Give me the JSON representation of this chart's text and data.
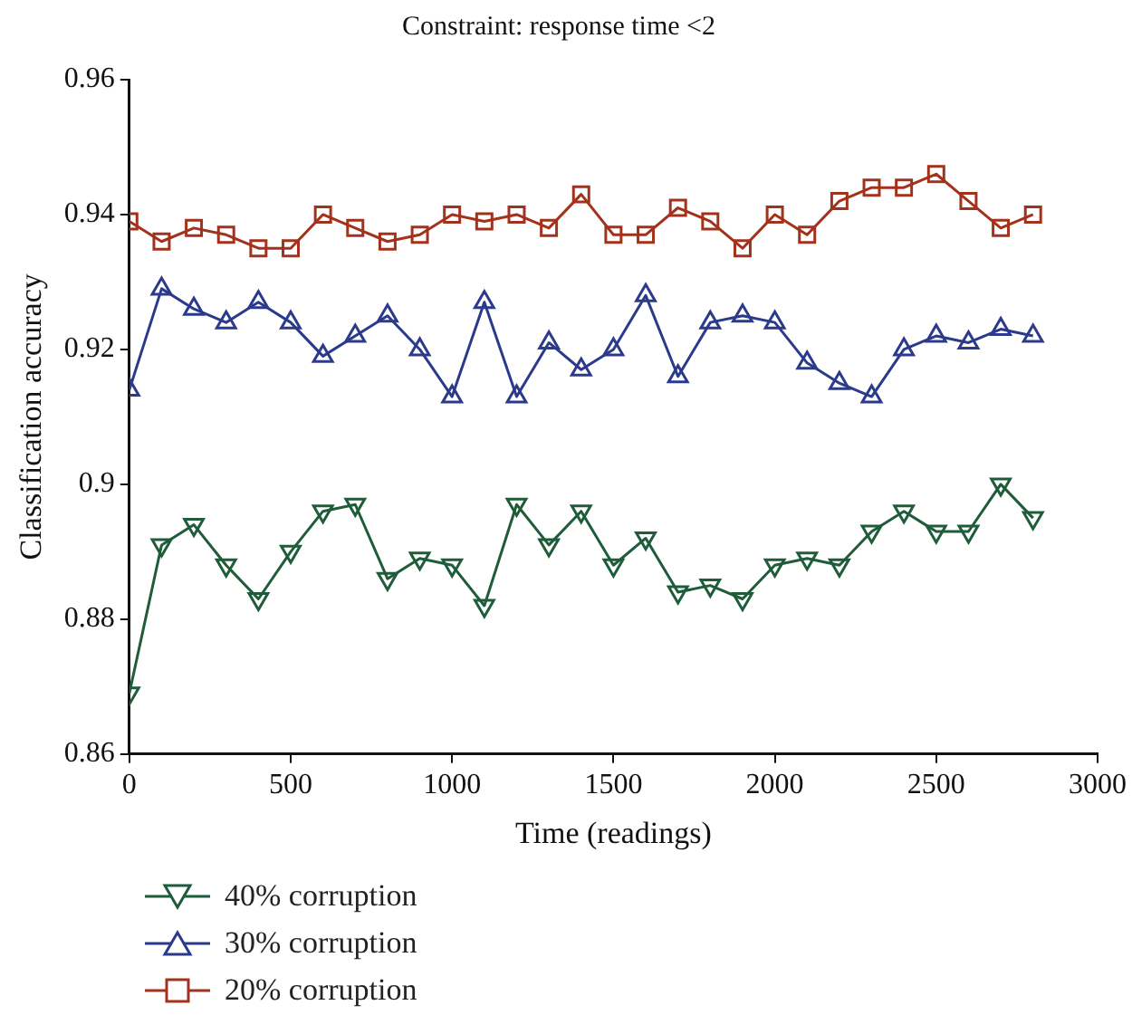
{
  "chart_data": {
    "type": "line",
    "title": "Constraint: response time <2",
    "xlabel": "Time (readings)",
    "ylabel": "Classification accuracy",
    "x": [
      0,
      100,
      200,
      300,
      400,
      500,
      600,
      700,
      800,
      900,
      1000,
      1100,
      1200,
      1300,
      1400,
      1500,
      1600,
      1700,
      1800,
      1900,
      2000,
      2100,
      2200,
      2300,
      2400,
      2500,
      2600,
      2700,
      2800
    ],
    "xlim": [
      0,
      3000
    ],
    "xticks": [
      0,
      500,
      1000,
      1500,
      2000,
      2500,
      3000
    ],
    "ylim": [
      0.86,
      0.96
    ],
    "yticks": [
      0.86,
      0.88,
      0.9,
      0.92,
      0.94,
      0.96
    ],
    "grid": false,
    "legend": "bottom left",
    "line_style": "solid",
    "series": [
      {
        "name": "40% corruption",
        "color": "#1e5c3a",
        "marker": "triangle_down",
        "values": [
          0.869,
          0.891,
          0.894,
          0.888,
          0.883,
          0.89,
          0.896,
          0.897,
          0.886,
          0.889,
          0.888,
          0.882,
          0.897,
          0.891,
          0.896,
          0.888,
          0.892,
          0.884,
          0.885,
          0.883,
          0.888,
          0.889,
          0.888,
          0.893,
          0.896,
          0.893,
          0.893,
          0.9,
          0.895
        ]
      },
      {
        "name": "30% corruption",
        "color": "#2b3a8a",
        "marker": "triangle",
        "values": [
          0.914,
          0.929,
          0.926,
          0.924,
          0.927,
          0.924,
          0.919,
          0.922,
          0.925,
          0.92,
          0.913,
          0.927,
          0.913,
          0.921,
          0.917,
          0.92,
          0.928,
          0.916,
          0.924,
          0.925,
          0.924,
          0.918,
          0.915,
          0.913,
          0.92,
          0.922,
          0.921,
          0.923,
          0.922
        ]
      },
      {
        "name": "20% corruption",
        "color": "#a3321c",
        "marker": "square",
        "values": [
          0.939,
          0.936,
          0.938,
          0.937,
          0.935,
          0.935,
          0.94,
          0.938,
          0.936,
          0.937,
          0.94,
          0.939,
          0.94,
          0.938,
          0.943,
          0.937,
          0.937,
          0.941,
          0.939,
          0.935,
          0.94,
          0.937,
          0.942,
          0.944,
          0.944,
          0.946,
          0.942,
          0.938,
          0.94
        ]
      }
    ]
  }
}
